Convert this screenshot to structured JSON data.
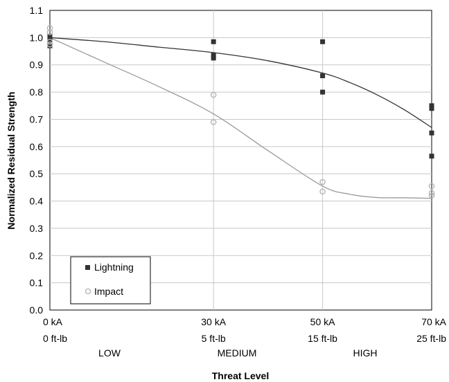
{
  "chart_data": {
    "type": "scatter",
    "title": "",
    "xlabel": "Threat Level",
    "ylabel": "Normalized Residual Strength",
    "ylim": [
      0.0,
      1.1
    ],
    "yticks": [
      "0.0",
      "0.1",
      "0.2",
      "0.3",
      "0.4",
      "0.5",
      "0.6",
      "0.7",
      "0.8",
      "0.9",
      "1.0",
      "1.1"
    ],
    "x_categories": [
      {
        "line1": "0 kA",
        "line2": "0 ft-lb"
      },
      {
        "line1": "30 kA",
        "line2": "5 ft-lb"
      },
      {
        "line1": "50 kA",
        "line2": "15 ft-lb"
      },
      {
        "line1": "70 kA",
        "line2": "25 ft-lb"
      }
    ],
    "zones": [
      "LOW",
      "MEDIUM",
      "HIGH"
    ],
    "grid": true,
    "legend_position": "bottom-left",
    "series": [
      {
        "name": "Lightning",
        "marker": "square",
        "color": "#333333",
        "points": [
          {
            "x": 0,
            "y": 1.005
          },
          {
            "x": 0,
            "y": 0.97
          },
          {
            "x": 0,
            "y": 0.99
          },
          {
            "x": 30,
            "y": 0.985
          },
          {
            "x": 30,
            "y": 0.935
          },
          {
            "x": 30,
            "y": 0.925
          },
          {
            "x": 50,
            "y": 0.985
          },
          {
            "x": 50,
            "y": 0.86
          },
          {
            "x": 50,
            "y": 0.8
          },
          {
            "x": 70,
            "y": 0.75
          },
          {
            "x": 70,
            "y": 0.74
          },
          {
            "x": 70,
            "y": 0.65
          },
          {
            "x": 70,
            "y": 0.565
          }
        ],
        "trend": [
          [
            0,
            1.0
          ],
          [
            10,
            0.985
          ],
          [
            20,
            0.965
          ],
          [
            30,
            0.945
          ],
          [
            40,
            0.915
          ],
          [
            50,
            0.87
          ],
          [
            55,
            0.835
          ],
          [
            60,
            0.79
          ],
          [
            65,
            0.735
          ],
          [
            70,
            0.67
          ]
        ]
      },
      {
        "name": "Impact",
        "marker": "circle",
        "color": "#b5b5b5",
        "points": [
          {
            "x": 0,
            "y": 1.035
          },
          {
            "x": 0,
            "y": 1.02
          },
          {
            "x": 0,
            "y": 0.985
          },
          {
            "x": 0,
            "y": 0.975
          },
          {
            "x": 30,
            "y": 0.79
          },
          {
            "x": 30,
            "y": 0.69
          },
          {
            "x": 50,
            "y": 0.47
          },
          {
            "x": 50,
            "y": 0.435
          },
          {
            "x": 70,
            "y": 0.455
          },
          {
            "x": 70,
            "y": 0.43
          },
          {
            "x": 70,
            "y": 0.42
          }
        ],
        "trend": [
          [
            0,
            1.0
          ],
          [
            10,
            0.91
          ],
          [
            20,
            0.82
          ],
          [
            30,
            0.72
          ],
          [
            40,
            0.585
          ],
          [
            50,
            0.455
          ],
          [
            55,
            0.425
          ],
          [
            60,
            0.413
          ],
          [
            65,
            0.412
          ],
          [
            70,
            0.41
          ]
        ]
      }
    ]
  }
}
